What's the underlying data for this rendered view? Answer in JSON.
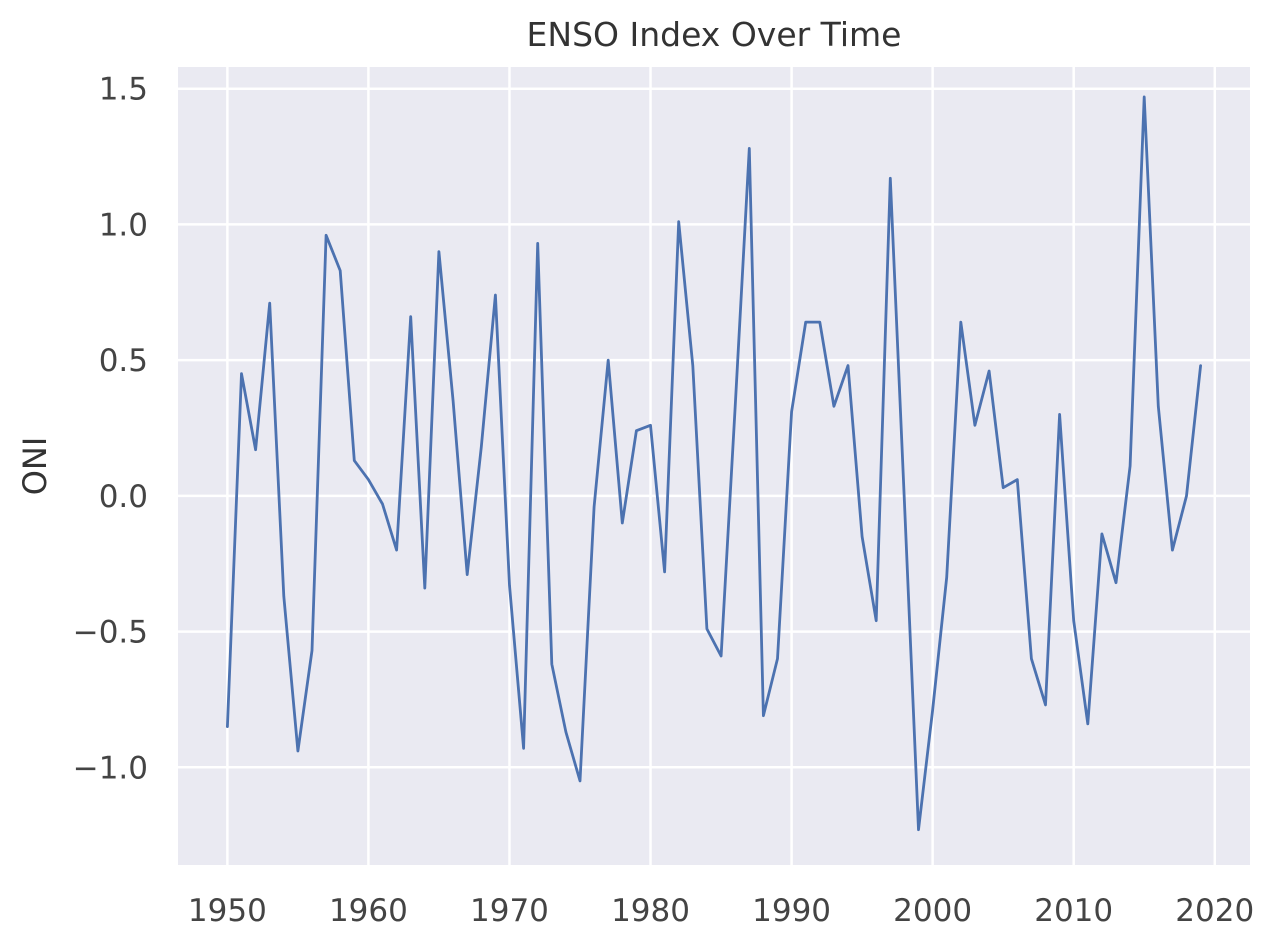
{
  "chart_data": {
    "type": "line",
    "title": "ENSO Index Over Time",
    "xlabel": "",
    "ylabel": "ONI",
    "xlim": [
      1946.5,
      2022.5
    ],
    "ylim": [
      -1.36,
      1.58
    ],
    "xticks": [
      1950,
      1960,
      1970,
      1980,
      1990,
      2000,
      2010,
      2020
    ],
    "xtick_labels": [
      "1950",
      "1960",
      "1970",
      "1980",
      "1990",
      "2000",
      "2010",
      "2020"
    ],
    "yticks": [
      -1.0,
      -0.5,
      0.0,
      0.5,
      1.0,
      1.5
    ],
    "ytick_labels": [
      "−1.0",
      "−0.5",
      "0.0",
      "0.5",
      "1.0",
      "1.5"
    ],
    "grid": true,
    "colors": {
      "background": "#eaeaf2",
      "grid": "#ffffff",
      "line": "#4c72b0"
    },
    "series": [
      {
        "x": [
          1950,
          1951,
          1952,
          1953,
          1954,
          1955,
          1956,
          1957,
          1958,
          1959,
          1960,
          1961,
          1962,
          1963,
          1964,
          1965,
          1966,
          1967,
          1968,
          1969,
          1970,
          1971,
          1972,
          1973,
          1974,
          1975,
          1976,
          1977,
          1978,
          1979,
          1980,
          1981,
          1982,
          1983,
          1984,
          1985,
          1986,
          1987,
          1988,
          1989,
          1990,
          1991,
          1992,
          1993,
          1994,
          1995,
          1996,
          1997,
          1998,
          1999,
          2000,
          2001,
          2002,
          2003,
          2004,
          2005,
          2006,
          2007,
          2008,
          2009,
          2010,
          2011,
          2012,
          2013,
          2014,
          2015,
          2016,
          2017,
          2018,
          2019
        ],
        "values": [
          -0.85,
          0.45,
          0.17,
          0.71,
          -0.37,
          -0.94,
          -0.57,
          0.96,
          0.83,
          0.13,
          0.06,
          -0.03,
          -0.2,
          0.66,
          -0.34,
          0.9,
          0.35,
          -0.29,
          0.18,
          0.74,
          -0.33,
          -0.93,
          0.93,
          -0.62,
          -0.87,
          -1.05,
          -0.04,
          0.5,
          -0.1,
          0.24,
          0.26,
          -0.28,
          1.01,
          0.48,
          -0.49,
          -0.59,
          0.33,
          1.28,
          -0.81,
          -0.6,
          0.31,
          0.64,
          0.64,
          0.33,
          0.48,
          -0.15,
          -0.46,
          1.17,
          -0.02,
          -1.23,
          -0.79,
          -0.3,
          0.64,
          0.26,
          0.46,
          0.03,
          0.06,
          -0.6,
          -0.77,
          0.3,
          -0.46,
          -0.84,
          -0.14,
          -0.32,
          0.11,
          1.47,
          0.33,
          -0.2,
          0.0,
          0.48
        ]
      }
    ]
  }
}
